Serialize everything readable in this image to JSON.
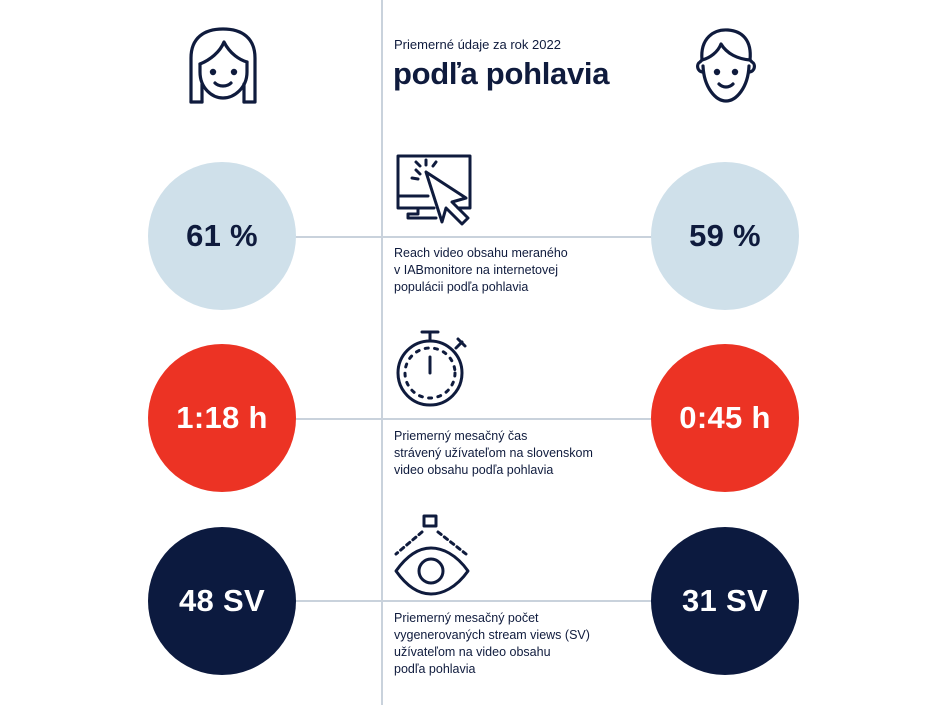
{
  "header": {
    "subtitle": "Priemerné údaje za rok 2022",
    "title": "podľa pohlavia"
  },
  "icons": {
    "female": "female-face-icon",
    "male": "male-face-icon",
    "reach": "screen-cursor-icon",
    "time": "stopwatch-icon",
    "views": "eye-icon"
  },
  "colors": {
    "navy": "#0c1a3f",
    "red": "#ec3324",
    "light_blue": "#cfe0ea",
    "divider": "#c9d2dc"
  },
  "rows": [
    {
      "female_value": "61 %",
      "male_value": "59 %",
      "description": [
        "Reach video obsahu meraného",
        "v IABmonitore na internetovej",
        "populácii podľa pohlavia"
      ]
    },
    {
      "female_value": "1:18 h",
      "male_value": "0:45 h",
      "description": [
        "Priemerný mesačný čas",
        "strávený užívateľom na slovenskom",
        "video obsahu podľa pohlavia"
      ]
    },
    {
      "female_value": "48 SV",
      "male_value": "31 SV",
      "description": [
        "Priemerný mesačný počet",
        "vygenerovaných stream views (SV)",
        "užívateľom na video obsahu",
        "podľa pohlavia"
      ]
    }
  ]
}
